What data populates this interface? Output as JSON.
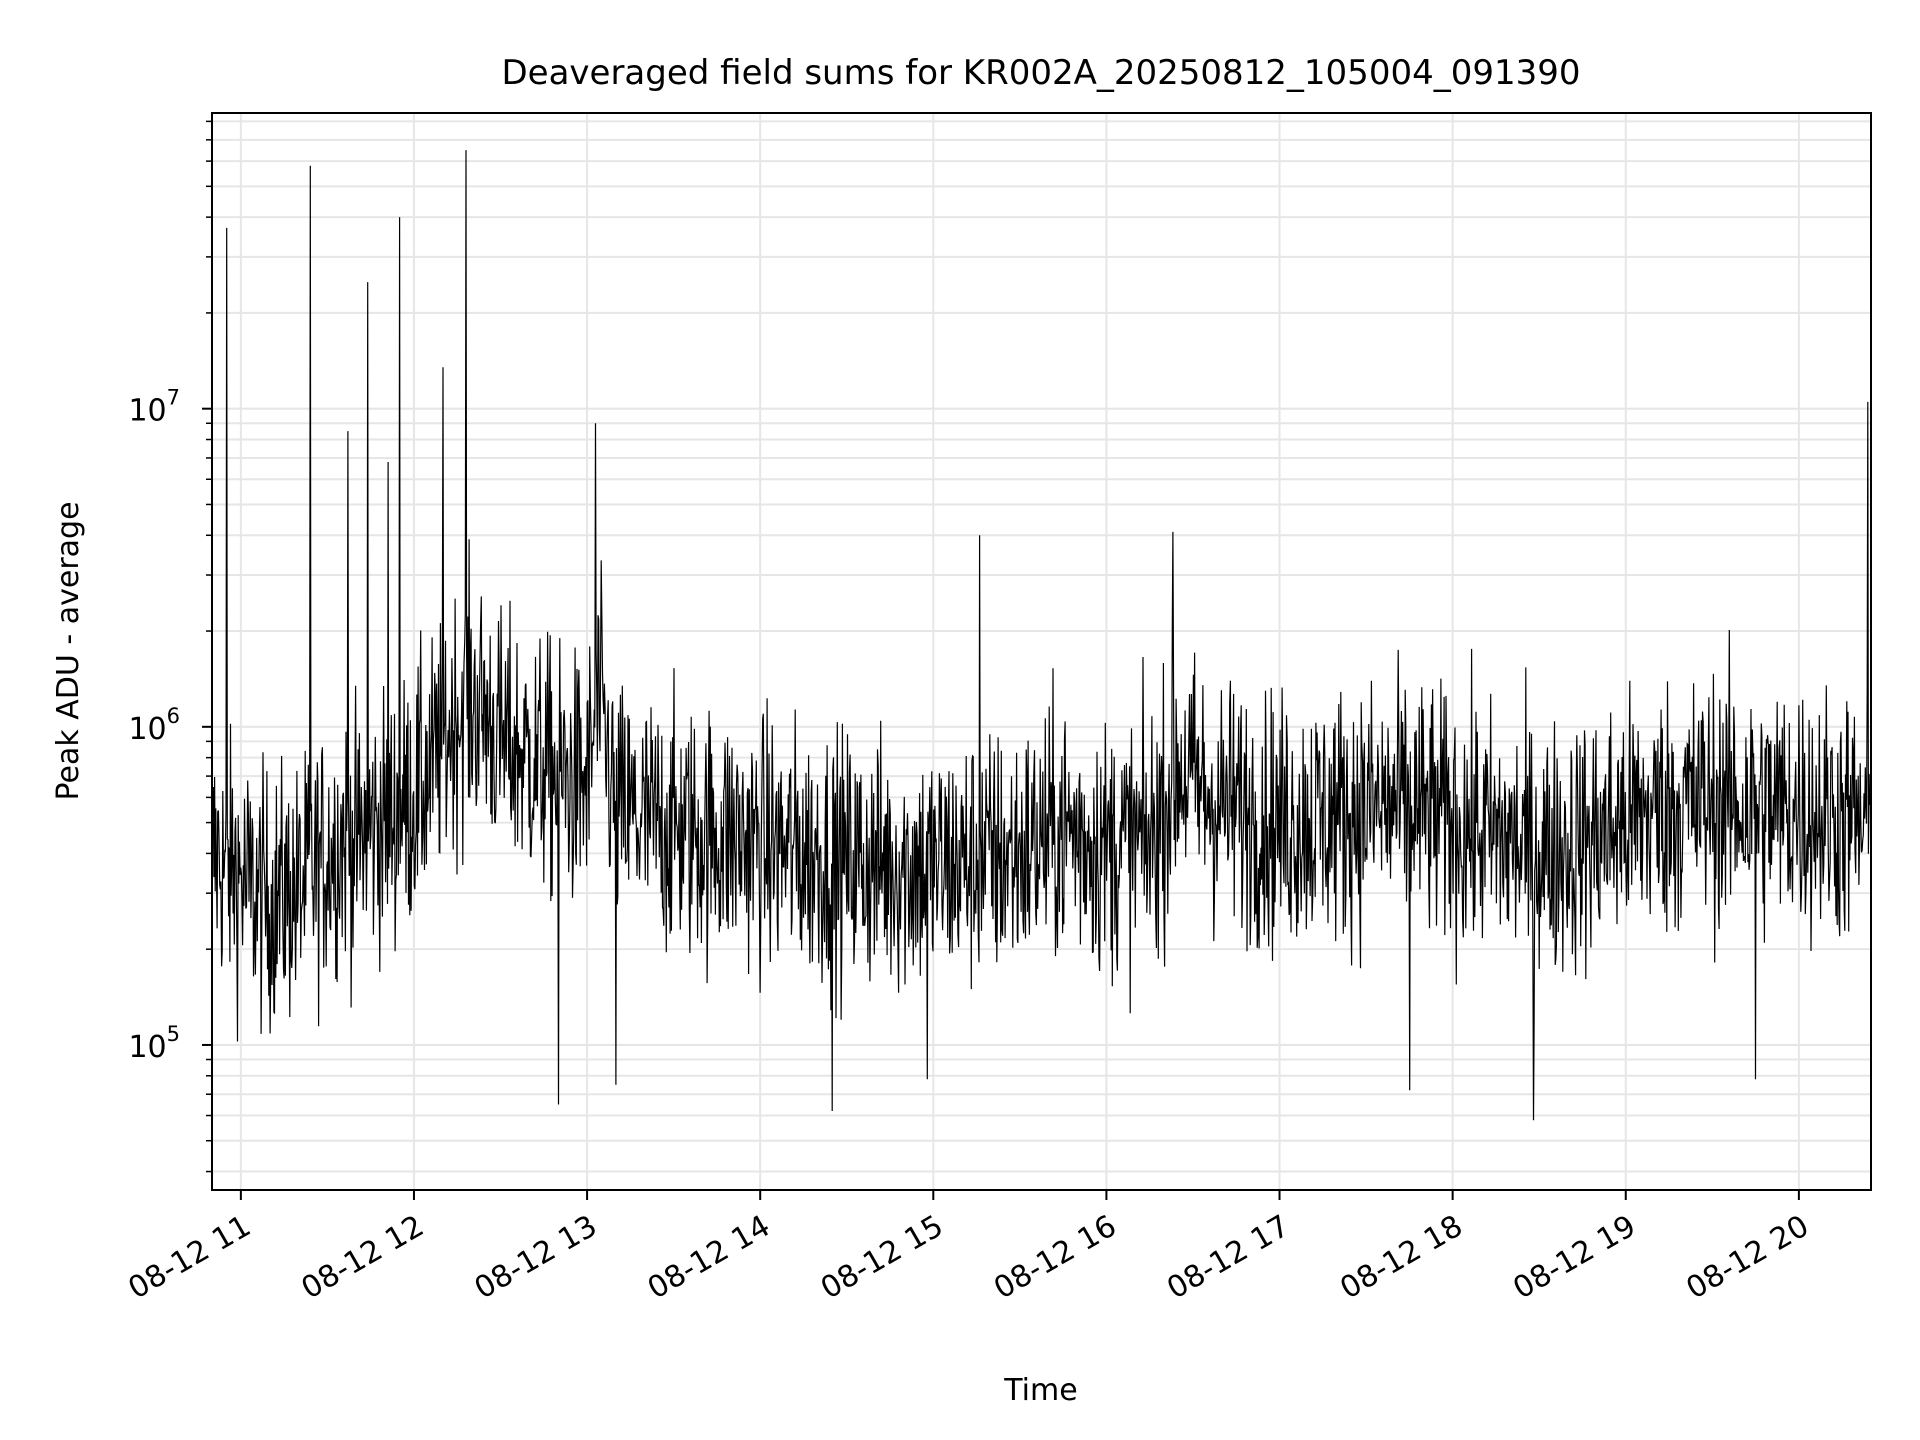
{
  "chart_data": {
    "type": "line",
    "title": "Deaveraged field sums for KR002A_20250812_105004_091390",
    "xlabel": "Time",
    "ylabel": "Peak ADU - average",
    "x_ticks": [
      "08-12 11",
      "08-12 12",
      "08-12 13",
      "08-12 14",
      "08-12 15",
      "08-12 16",
      "08-12 17",
      "08-12 18",
      "08-12 19",
      "08-12 20"
    ],
    "y_ticks": [
      {
        "base": "10",
        "exp": "5",
        "value": 100000
      },
      {
        "base": "10",
        "exp": "6",
        "value": 1000000
      },
      {
        "base": "10",
        "exp": "7",
        "value": 10000000
      }
    ],
    "xlim": [
      "2025-08-12 10:50",
      "2025-08-12 20:25"
    ],
    "ylim": [
      35000,
      85000000
    ],
    "y_scale": "log",
    "grid": true,
    "line_color": "#000000",
    "series": [
      {
        "x": [
          "2025-08-12 10:50",
          "2025-08-12 10:53",
          "2025-08-12 10:55",
          "2025-08-12 10:58",
          "2025-08-12 11:00",
          "2025-08-12 11:05",
          "2025-08-12 11:10",
          "2025-08-12 11:15",
          "2025-08-12 11:20",
          "2025-08-12 11:24",
          "2025-08-12 11:30",
          "2025-08-12 11:35",
          "2025-08-12 11:40",
          "2025-08-12 11:45",
          "2025-08-12 11:50",
          "2025-08-12 11:55",
          "2025-08-12 12:00",
          "2025-08-12 12:05",
          "2025-08-12 12:10",
          "2025-08-12 12:15",
          "2025-08-12 12:20",
          "2025-08-12 12:25",
          "2025-08-12 12:30",
          "2025-08-12 12:40",
          "2025-08-12 12:50",
          "2025-08-12 13:00",
          "2025-08-12 13:04",
          "2025-08-12 13:10",
          "2025-08-12 13:20",
          "2025-08-12 13:30",
          "2025-08-12 13:40",
          "2025-08-12 13:50",
          "2025-08-12 14:00",
          "2025-08-12 14:15",
          "2025-08-12 14:30",
          "2025-08-12 14:45",
          "2025-08-12 15:00",
          "2025-08-12 15:15",
          "2025-08-12 15:30",
          "2025-08-12 15:45",
          "2025-08-12 16:00",
          "2025-08-12 16:15",
          "2025-08-12 16:25",
          "2025-08-12 16:35",
          "2025-08-12 16:45",
          "2025-08-12 17:00",
          "2025-08-12 17:15",
          "2025-08-12 17:30",
          "2025-08-12 17:45",
          "2025-08-12 18:00",
          "2025-08-12 18:15",
          "2025-08-12 18:30",
          "2025-08-12 18:45",
          "2025-08-12 19:00",
          "2025-08-12 19:15",
          "2025-08-12 19:30",
          "2025-08-12 19:45",
          "2025-08-12 20:00",
          "2025-08-12 20:15",
          "2025-08-12 20:24"
        ],
        "y": [
          400000,
          380000,
          350000,
          360000,
          330000,
          300000,
          280000,
          300000,
          300000,
          340000,
          400000,
          450000,
          430000,
          480000,
          500000,
          550000,
          600000,
          700000,
          900000,
          1100000,
          1200000,
          1100000,
          900000,
          800000,
          700000,
          650000,
          1200000,
          550000,
          500000,
          480000,
          460000,
          450000,
          430000,
          400000,
          380000,
          370000,
          360000,
          380000,
          400000,
          480000,
          420000,
          430000,
          750000,
          600000,
          550000,
          500000,
          520000,
          550000,
          560000,
          500000,
          450000,
          400000,
          430000,
          500000,
          560000,
          580000,
          560000,
          550000,
          520000,
          480000
        ]
      }
    ],
    "spikes": [
      {
        "x": "2025-08-12 10:55",
        "y": 37000000
      },
      {
        "x": "2025-08-12 11:24",
        "y": 58000000
      },
      {
        "x": "2025-08-12 11:37",
        "y": 8500000
      },
      {
        "x": "2025-08-12 11:44",
        "y": 25000000
      },
      {
        "x": "2025-08-12 11:51",
        "y": 6800000
      },
      {
        "x": "2025-08-12 11:55",
        "y": 40000000
      },
      {
        "x": "2025-08-12 12:10",
        "y": 13500000
      },
      {
        "x": "2025-08-12 12:18",
        "y": 65000000
      },
      {
        "x": "2025-08-12 13:03",
        "y": 9000000
      },
      {
        "x": "2025-08-12 15:16",
        "y": 4000000
      },
      {
        "x": "2025-08-12 16:23",
        "y": 4100000
      },
      {
        "x": "2025-08-12 20:24",
        "y": 10500000
      }
    ],
    "dips": [
      {
        "x": "2025-08-12 12:50",
        "y": 65000
      },
      {
        "x": "2025-08-12 13:10",
        "y": 75000
      },
      {
        "x": "2025-08-12 14:25",
        "y": 62000
      },
      {
        "x": "2025-08-12 14:58",
        "y": 78000
      },
      {
        "x": "2025-08-12 17:45",
        "y": 72000
      },
      {
        "x": "2025-08-12 18:28",
        "y": 58000
      },
      {
        "x": "2025-08-12 19:45",
        "y": 78000
      }
    ]
  }
}
